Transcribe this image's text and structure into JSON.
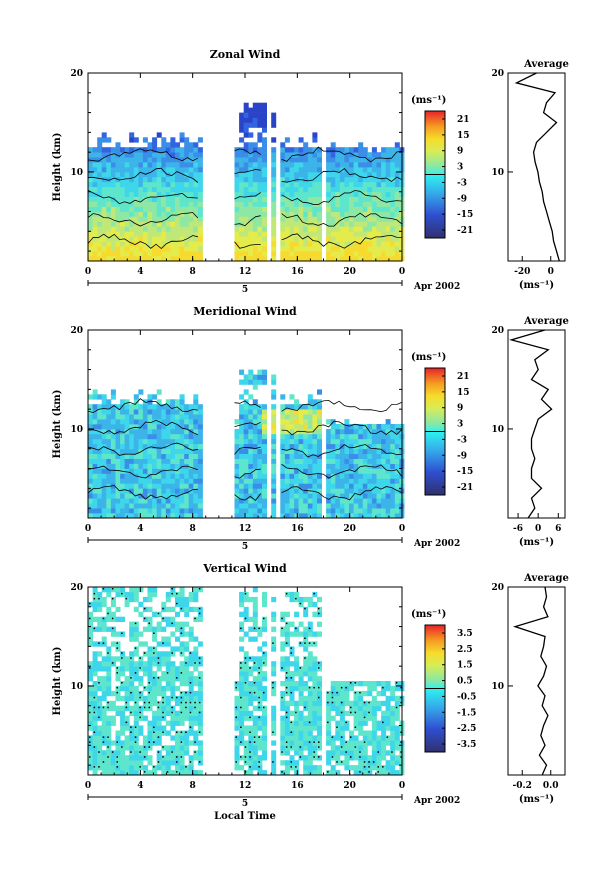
{
  "x_axis_title": "Local Time",
  "date_marker": "5",
  "date_label": "Apr 2002",
  "colorbar_unit": "(ms⁻¹)",
  "profile_unit": "(ms⁻¹)",
  "profile_title": "Average",
  "y_axis_title": "Height (km)",
  "chart_data": [
    {
      "type": "heatmap",
      "title": "Zonal Wind",
      "xlabel": "Local Time",
      "ylabel": "Height (km)",
      "x_tick_labels": [
        "0",
        "4",
        "8",
        "12",
        "16",
        "20",
        "0"
      ],
      "y_tick_labels": [
        "10",
        "20"
      ],
      "xlim": [
        0,
        24
      ],
      "ylim": [
        1,
        20
      ],
      "gaps_hours": [
        [
          8.8,
          11.2
        ],
        [
          13.5,
          13.9
        ],
        [
          14.3,
          14.7
        ],
        [
          18.0,
          18.2
        ]
      ],
      "top_extent_km": {
        "0-8.8": 14,
        "11.2-14": 17,
        "14-18": 14,
        "18-24": 13
      },
      "colorbar": {
        "ticks": [
          "21",
          "15",
          "9",
          "3",
          "-3",
          "-9",
          "-15",
          "-21"
        ],
        "min": -24,
        "max": 24
      },
      "profile": {
        "xlim": [
          -30,
          10
        ],
        "x_tick_labels": [
          "-20",
          "0"
        ],
        "y_tick_labels": [
          "10",
          "20"
        ],
        "heights": [
          1,
          2,
          3,
          4,
          5,
          6,
          7,
          8,
          9,
          10,
          11,
          12,
          13,
          14,
          15,
          16,
          17,
          18,
          19,
          20
        ],
        "values": [
          6,
          4,
          2,
          1,
          -1,
          -3,
          -5,
          -6,
          -8,
          -9,
          -11,
          -12,
          -10,
          -3,
          4,
          -5,
          -3,
          3,
          -24,
          -10
        ]
      }
    },
    {
      "type": "heatmap",
      "title": "Meridional Wind",
      "xlabel": "Local Time",
      "ylabel": "Height (km)",
      "x_tick_labels": [
        "0",
        "4",
        "8",
        "12",
        "16",
        "20",
        "0"
      ],
      "y_tick_labels": [
        "10",
        "20"
      ],
      "xlim": [
        0,
        24
      ],
      "ylim": [
        1,
        20
      ],
      "gaps_hours": [
        [
          8.8,
          11.2
        ],
        [
          13.5,
          13.9
        ],
        [
          14.3,
          14.7
        ],
        [
          18.0,
          18.2
        ]
      ],
      "top_extent_km": {
        "0-8.8": 14,
        "11.2-14": 16,
        "14-18": 14,
        "18-24": 11
      },
      "colorbar": {
        "ticks": [
          "21",
          "15",
          "9",
          "3",
          "-3",
          "-9",
          "-15",
          "-21"
        ],
        "min": -24,
        "max": 24
      },
      "profile": {
        "xlim": [
          -9,
          8
        ],
        "x_tick_labels": [
          "-6",
          "0",
          "6"
        ],
        "y_tick_labels": [
          "10",
          "20"
        ],
        "heights": [
          1,
          2,
          3,
          4,
          5,
          6,
          7,
          8,
          9,
          10,
          11,
          12,
          13,
          14,
          15,
          16,
          17,
          18,
          19,
          20
        ],
        "values": [
          -3,
          -1,
          -2,
          1,
          -2,
          -2,
          -1,
          -2,
          -2,
          -1,
          0,
          4,
          1,
          3,
          -2,
          0,
          -1,
          3,
          -8,
          2
        ]
      }
    },
    {
      "type": "heatmap",
      "title": "Vertical Wind",
      "xlabel": "Local Time",
      "ylabel": "Height (km)",
      "x_tick_labels": [
        "0",
        "4",
        "8",
        "12",
        "16",
        "20",
        "0"
      ],
      "y_tick_labels": [
        "10",
        "20"
      ],
      "xlim": [
        0,
        24
      ],
      "ylim": [
        1,
        20
      ],
      "gaps_hours": [
        [
          8.8,
          11.2
        ],
        [
          13.5,
          13.9
        ],
        [
          14.3,
          14.7
        ],
        [
          18.0,
          18.2
        ]
      ],
      "top_extent_km": {
        "0-8.8": 20,
        "11.2-14": 20,
        "14-18": 19,
        "18-24": 10
      },
      "colorbar": {
        "ticks": [
          "3.5",
          "2.5",
          "1.5",
          "0.5",
          "-0.5",
          "-1.5",
          "-2.5",
          "-3.5"
        ],
        "min": -4,
        "max": 4
      },
      "profile": {
        "xlim": [
          -0.3,
          0.1
        ],
        "x_tick_labels": [
          "-0.2",
          "0.0"
        ],
        "y_tick_labels": [
          "10",
          "20"
        ],
        "heights": [
          1,
          2,
          3,
          4,
          5,
          6,
          7,
          8,
          9,
          10,
          11,
          12,
          13,
          14,
          15,
          16,
          17,
          18,
          19,
          20
        ],
        "values": [
          -0.06,
          -0.03,
          -0.08,
          -0.04,
          -0.07,
          -0.05,
          -0.02,
          -0.06,
          -0.04,
          -0.09,
          -0.05,
          -0.03,
          -0.07,
          -0.05,
          -0.04,
          -0.25,
          -0.02,
          -0.05,
          -0.03,
          -0.04
        ]
      }
    }
  ]
}
